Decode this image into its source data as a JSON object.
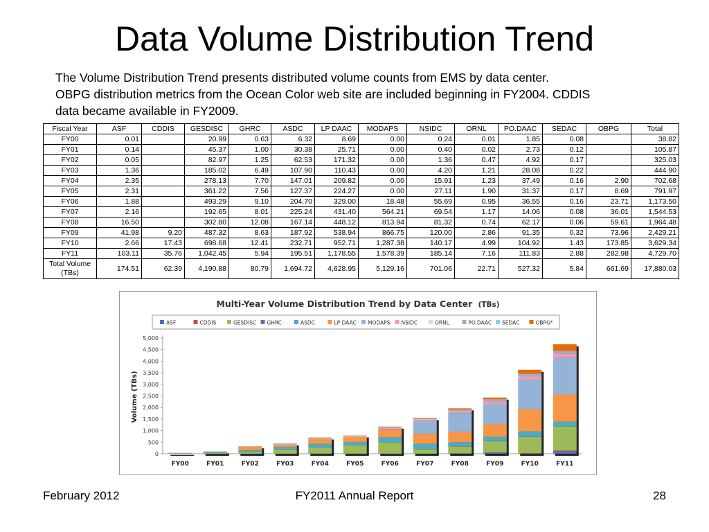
{
  "slide": {
    "title": "Data Volume Distribution Trend",
    "description": [
      "The Volume Distribution Trend presents distributed volume counts from EMS by data center.",
      "OBPG distribution metrics from the Ocean Color web site are included beginning in FY2004. CDDIS",
      "data became available in FY2009."
    ],
    "footer": {
      "left": "February 2012",
      "center": "FY2011 Annual Report",
      "right": "28"
    }
  },
  "table": {
    "headers": [
      "Fiscal Year",
      "ASF",
      "CDDIS",
      "GESDISC",
      "GHRC",
      "ASDC",
      "LP DAAC",
      "MODAPS",
      "NSIDC",
      "ORNL",
      "PO.DAAC",
      "SEDAC",
      "OBPG",
      "Total"
    ],
    "rows": [
      [
        "FY00",
        "0.01",
        "",
        "20.99",
        "0.63",
        "6.32",
        "8.69",
        "0.00",
        "0.24",
        "0.01",
        "1.85",
        "0.08",
        "",
        "38.82"
      ],
      [
        "FY01",
        "0.14",
        "",
        "45.37",
        "1.00",
        "30.38",
        "25.71",
        "0.00",
        "0.40",
        "0.02",
        "2.73",
        "0.12",
        "",
        "105.87"
      ],
      [
        "FY02",
        "0.05",
        "",
        "82.97",
        "1.25",
        "62.53",
        "171.32",
        "0.00",
        "1.36",
        "0.47",
        "4.92",
        "0.17",
        "",
        "325.03"
      ],
      [
        "FY03",
        "1.36",
        "",
        "185.02",
        "6.49",
        "107.90",
        "110.43",
        "0.00",
        "4.20",
        "1.21",
        "28.08",
        "0.22",
        "",
        "444.90"
      ],
      [
        "FY04",
        "2.35",
        "",
        "278.13",
        "7.70",
        "147.01",
        "209.82",
        "0.00",
        "15.91",
        "1.23",
        "37.49",
        "0.16",
        "2.90",
        "702.68"
      ],
      [
        "FY05",
        "2.31",
        "",
        "361.22",
        "7.56",
        "127.37",
        "224.27",
        "0.00",
        "27.11",
        "1.90",
        "31.37",
        "0.17",
        "8.69",
        "791.97"
      ],
      [
        "FY06",
        "1.88",
        "",
        "493.29",
        "9.10",
        "204.70",
        "329.00",
        "18.48",
        "55.69",
        "0.95",
        "36.55",
        "0.16",
        "23.71",
        "1,173.50"
      ],
      [
        "FY07",
        "2.16",
        "",
        "192.65",
        "8.01",
        "225.24",
        "431.40",
        "564.21",
        "69.54",
        "1.17",
        "14.06",
        "0.08",
        "36.01",
        "1,544.53"
      ],
      [
        "FY08",
        "16.50",
        "",
        "302.80",
        "12.08",
        "167.14",
        "448.12",
        "813.94",
        "81.32",
        "0.74",
        "62.17",
        "0.06",
        "59.61",
        "1,964.48"
      ],
      [
        "FY09",
        "41.98",
        "9.20",
        "487.32",
        "8.63",
        "187.92",
        "538.94",
        "866.75",
        "120.00",
        "2.86",
        "91.35",
        "0.32",
        "73.96",
        "2,429.21"
      ],
      [
        "FY10",
        "2.66",
        "17.43",
        "698.68",
        "12.41",
        "232.71",
        "952.71",
        "1,287.38",
        "140.17",
        "4.99",
        "104.92",
        "1.43",
        "173.85",
        "3,629.34"
      ],
      [
        "FY11",
        "103.11",
        "35.76",
        "1,042.45",
        "5.94",
        "195.51",
        "1,178.55",
        "1,578.39",
        "185.14",
        "7.16",
        "111.83",
        "2.88",
        "282.98",
        "4,729.70"
      ]
    ],
    "total_row": {
      "label_line1": "Total Volume",
      "label_line2": "(TBs)",
      "values": [
        "174.51",
        "62.39",
        "4,190.88",
        "80.79",
        "1,694.72",
        "4,628.95",
        "5,129.16",
        "701.06",
        "22.71",
        "527.32",
        "5.84",
        "661.69",
        "17,880.03"
      ]
    }
  },
  "chart_data": {
    "type": "bar",
    "stacked": true,
    "title_main": "Multi-Year Volume Distribution Trend by Data Center",
    "title_unit": "(TBs)",
    "ylabel": "Volume (TBs)",
    "xlabel": "",
    "ylim": [
      0,
      5000
    ],
    "yticks": [
      "0",
      "500",
      "1,000",
      "1,500",
      "2,000",
      "2,500",
      "3,000",
      "3,500",
      "4,000",
      "4,500",
      "5,000"
    ],
    "categories": [
      "FY00",
      "FY01",
      "FY02",
      "FY03",
      "FY04",
      "FY05",
      "FY06",
      "FY07",
      "FY08",
      "FY09",
      "FY10",
      "FY11"
    ],
    "legend_position": "top",
    "grid": false,
    "series": [
      {
        "name": "ASF",
        "color": "#4f6fbd",
        "values": [
          0.01,
          0.14,
          0.05,
          1.36,
          2.35,
          2.31,
          1.88,
          2.16,
          16.5,
          41.98,
          2.66,
          103.11
        ]
      },
      {
        "name": "CDDIS",
        "color": "#c0504d",
        "values": [
          0,
          0,
          0,
          0,
          0,
          0,
          0,
          0,
          0,
          9.2,
          17.43,
          35.76
        ]
      },
      {
        "name": "GESDISC",
        "color": "#9bbb59",
        "values": [
          20.99,
          45.37,
          82.97,
          185.02,
          278.13,
          361.22,
          493.29,
          192.65,
          302.8,
          487.32,
          698.68,
          1042.45
        ]
      },
      {
        "name": "GHRC",
        "color": "#7b62a3",
        "values": [
          0.63,
          1.0,
          1.25,
          6.49,
          7.7,
          7.56,
          9.1,
          8.01,
          12.08,
          8.63,
          12.41,
          5.94
        ]
      },
      {
        "name": "ASDC",
        "color": "#4bacc6",
        "values": [
          6.32,
          30.38,
          62.53,
          107.9,
          147.01,
          127.37,
          204.7,
          225.24,
          167.14,
          187.92,
          232.71,
          195.51
        ]
      },
      {
        "name": "LP DAAC",
        "color": "#f79646",
        "values": [
          8.69,
          25.71,
          171.32,
          110.43,
          209.82,
          224.27,
          329.0,
          431.4,
          448.12,
          538.94,
          952.71,
          1178.55
        ]
      },
      {
        "name": "MODAPS",
        "color": "#95b3d7",
        "values": [
          0,
          0,
          0,
          0,
          0,
          0,
          18.48,
          564.21,
          813.94,
          866.75,
          1287.38,
          1578.39
        ]
      },
      {
        "name": "NSIDC",
        "color": "#e6a0b4",
        "values": [
          0.24,
          0.4,
          1.36,
          4.2,
          15.91,
          27.11,
          55.69,
          69.54,
          81.32,
          120.0,
          140.17,
          185.14
        ]
      },
      {
        "name": "ORNL",
        "color": "#d7e4bd",
        "values": [
          0.01,
          0.02,
          0.47,
          1.21,
          1.23,
          1.9,
          0.95,
          1.17,
          0.74,
          2.86,
          4.99,
          7.16
        ]
      },
      {
        "name": "PO.DAAC",
        "color": "#b3a2c7",
        "values": [
          1.85,
          2.73,
          4.92,
          28.08,
          37.49,
          31.37,
          36.55,
          14.06,
          62.17,
          91.35,
          104.92,
          111.83
        ]
      },
      {
        "name": "SEDAC",
        "color": "#93cddd",
        "values": [
          0.08,
          0.12,
          0.17,
          0.22,
          0.16,
          0.17,
          0.16,
          0.08,
          0.06,
          0.32,
          1.43,
          2.88
        ]
      },
      {
        "name": "OBPG*",
        "color": "#e46c0a",
        "values": [
          0,
          0,
          0,
          0,
          2.9,
          8.69,
          23.71,
          36.01,
          59.61,
          73.96,
          173.85,
          282.98
        ]
      }
    ]
  }
}
